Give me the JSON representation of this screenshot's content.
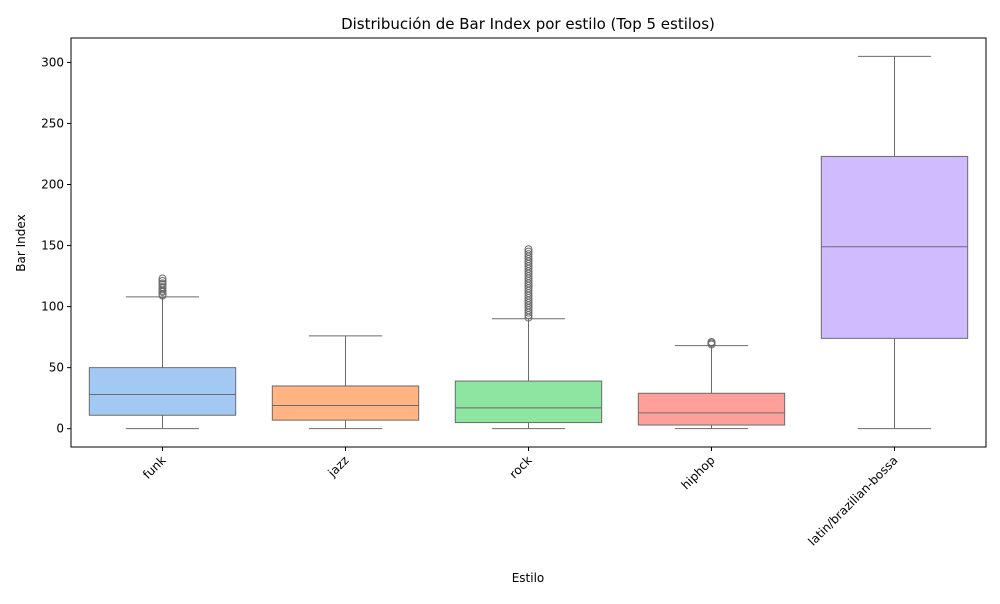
{
  "chart_data": {
    "type": "box",
    "title": "Distribución de Bar Index por estilo (Top 5 estilos)",
    "xlabel": "Estilo",
    "ylabel": "Bar Index",
    "ylim": [
      -15,
      320
    ],
    "yticks": [
      0,
      50,
      100,
      150,
      200,
      250,
      300
    ],
    "categories": [
      "funk",
      "jazz",
      "rock",
      "hiphop",
      "latin/brazilian-bossa"
    ],
    "colors": [
      "#a1c9f4",
      "#ffb482",
      "#8de5a1",
      "#ff9f9b",
      "#d0bbff"
    ],
    "edge_color": "#6b6b6b",
    "grid": false,
    "legend": "none",
    "boxes": [
      {
        "category": "funk",
        "whisker_low": 0,
        "q1": 11,
        "median": 28,
        "q3": 50,
        "whisker_high": 108,
        "outliers": [
          109,
          110,
          112,
          113,
          115,
          116,
          118,
          119,
          121,
          123
        ]
      },
      {
        "category": "jazz",
        "whisker_low": 0,
        "q1": 7,
        "median": 19,
        "q3": 35,
        "whisker_high": 76,
        "outliers": []
      },
      {
        "category": "rock",
        "whisker_low": 0,
        "q1": 5,
        "median": 17,
        "q3": 39,
        "whisker_high": 90,
        "outliers": [
          91,
          93,
          95,
          97,
          99,
          101,
          103,
          105,
          107,
          109,
          111,
          113,
          115,
          117,
          119,
          121,
          123,
          125,
          127,
          129,
          131,
          133,
          135,
          137,
          139,
          141,
          143,
          145,
          147
        ]
      },
      {
        "category": "hiphop",
        "whisker_low": 0,
        "q1": 3,
        "median": 13,
        "q3": 29,
        "whisker_high": 68,
        "outliers": [
          69,
          70,
          71
        ]
      },
      {
        "category": "latin/brazilian-bossa",
        "whisker_low": 0,
        "q1": 74,
        "median": 149,
        "q3": 223,
        "whisker_high": 305,
        "outliers": []
      }
    ]
  }
}
